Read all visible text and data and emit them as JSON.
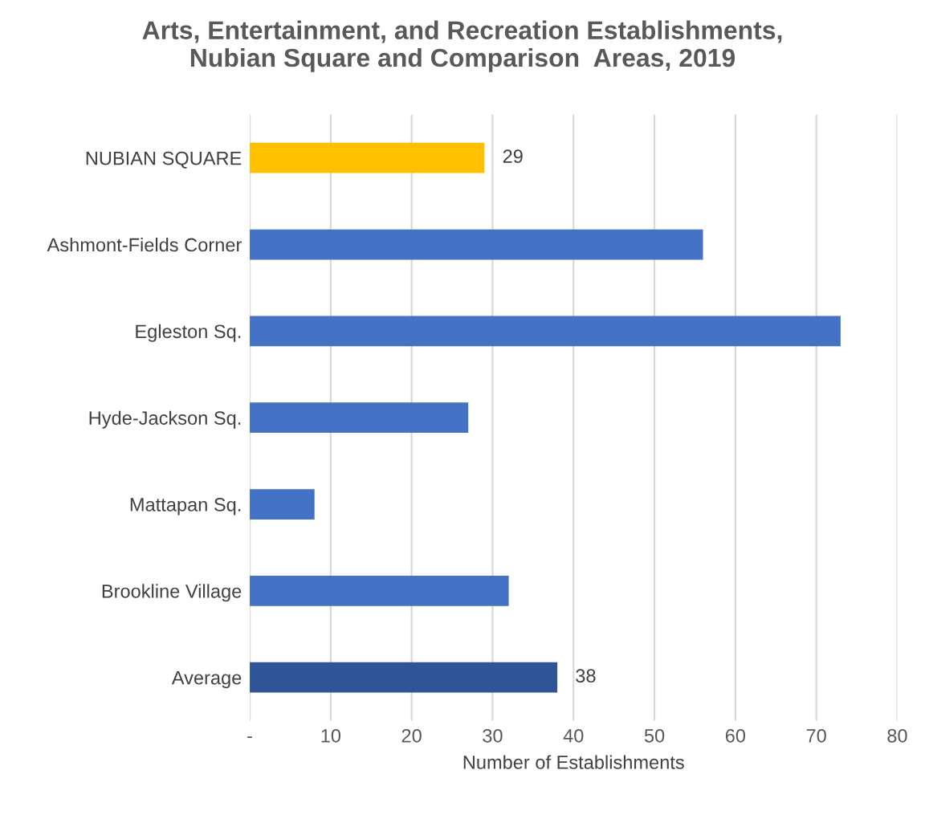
{
  "chart_data": {
    "type": "bar",
    "orientation": "horizontal",
    "title": "Arts, Entertainment, and Recreation Establishments,\nNubian Square and Comparison  Areas, 2019",
    "xlabel": "Number of Establishments",
    "categories": [
      "NUBIAN SQUARE",
      "Ashmont-Fields Corner",
      "Egleston Sq.",
      "Hyde-Jackson Sq.",
      "Mattapan Sq.",
      "Brookline Village",
      "Average"
    ],
    "values": [
      29,
      56,
      73,
      27,
      8,
      32,
      38
    ],
    "colors": [
      "#ffc000",
      "#4472c4",
      "#4472c4",
      "#4472c4",
      "#4472c4",
      "#4472c4",
      "#2f5597"
    ],
    "value_labels": [
      "29",
      null,
      null,
      null,
      null,
      null,
      "38"
    ],
    "xlim": [
      0,
      80
    ],
    "xticks": [
      {
        "value": 0,
        "label": "-"
      },
      10,
      20,
      30,
      40,
      50,
      60,
      70,
      80
    ],
    "grid": "x"
  }
}
